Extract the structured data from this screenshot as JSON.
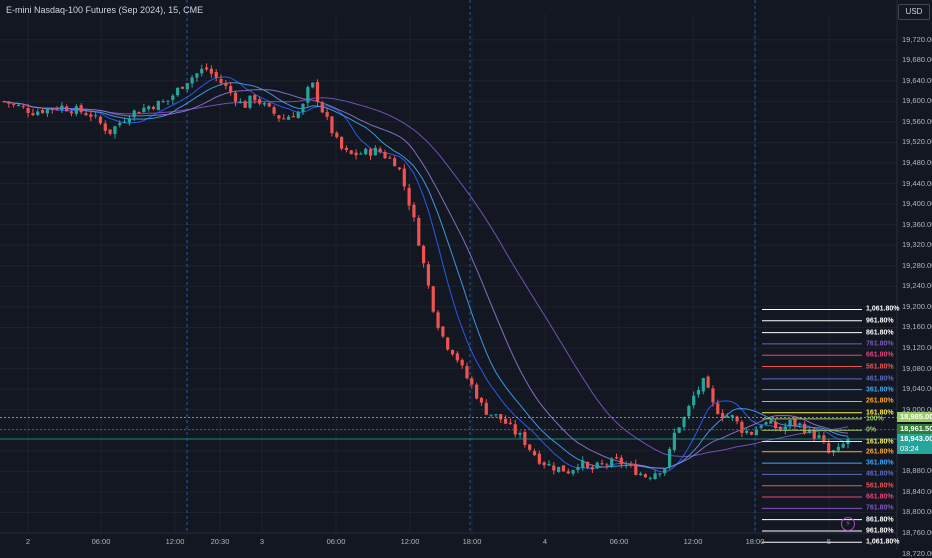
{
  "header": {
    "title": "E-mini Nasdaq-100 Futures (Sep 2024), 15, CME"
  },
  "scale": {
    "currency_label": "USD"
  },
  "colors": {
    "up": "#26a69a",
    "down": "#ef5350",
    "bg": "#131722",
    "grid": "#1e222d",
    "session": "#2a6bb5"
  },
  "chart_data": {
    "type": "candlestick",
    "instrument": "E-mini Nasdaq-100 Futures (Sep 2024)",
    "interval": "15",
    "exchange": "CME",
    "ylim": [
      18760,
      19770
    ],
    "y_ticks": [
      "19,720.00",
      "19,680.00",
      "19,640.00",
      "19,600.00",
      "19,560.00",
      "19,520.00",
      "19,480.00",
      "19,440.00",
      "19,400.00",
      "19,360.00",
      "19,320.00",
      "19,280.00",
      "19,240.00",
      "19,200.00",
      "19,160.00",
      "19,120.00",
      "19,080.00",
      "19,040.00",
      "19,000.00",
      "18,960.00",
      "18,920.00",
      "18,880.00",
      "18,840.00",
      "18,800.00",
      "18,760.00",
      "18,720.00"
    ],
    "x_ticks": [
      "2",
      "06:00",
      "12:00",
      "20:30",
      "3",
      "06:00",
      "12:00",
      "18:00",
      "4",
      "06:00",
      "12:00",
      "18:00",
      "5"
    ],
    "price_path": [
      [
        0,
        19600
      ],
      [
        6,
        19580
      ],
      [
        12,
        19590
      ],
      [
        18,
        19575
      ],
      [
        22,
        19540
      ],
      [
        26,
        19575
      ],
      [
        30,
        19590
      ],
      [
        34,
        19600
      ],
      [
        38,
        19640
      ],
      [
        42,
        19665
      ],
      [
        46,
        19630
      ],
      [
        48,
        19610
      ],
      [
        50,
        19590
      ],
      [
        52,
        19610
      ],
      [
        55,
        19585
      ],
      [
        58,
        19565
      ],
      [
        60,
        19575
      ],
      [
        62,
        19580
      ],
      [
        64,
        19640
      ],
      [
        66,
        19590
      ],
      [
        68,
        19550
      ],
      [
        70,
        19510
      ],
      [
        72,
        19495
      ],
      [
        75,
        19500
      ],
      [
        78,
        19505
      ],
      [
        80,
        19490
      ],
      [
        82,
        19480
      ],
      [
        84,
        19420
      ],
      [
        86,
        19350
      ],
      [
        88,
        19260
      ],
      [
        90,
        19180
      ],
      [
        92,
        19130
      ],
      [
        94,
        19110
      ],
      [
        96,
        19070
      ],
      [
        98,
        19040
      ],
      [
        100,
        19000
      ],
      [
        102,
        18990
      ],
      [
        104,
        18980
      ],
      [
        106,
        18960
      ],
      [
        108,
        18945
      ],
      [
        110,
        18920
      ],
      [
        112,
        18900
      ],
      [
        114,
        18890
      ],
      [
        116,
        18885
      ],
      [
        118,
        18880
      ],
      [
        120,
        18900
      ],
      [
        122,
        18880
      ],
      [
        124,
        18890
      ],
      [
        126,
        18895
      ],
      [
        128,
        18900
      ],
      [
        130,
        18890
      ],
      [
        132,
        18880
      ],
      [
        134,
        18870
      ],
      [
        136,
        18880
      ],
      [
        138,
        18890
      ],
      [
        140,
        18960
      ],
      [
        142,
        18985
      ],
      [
        144,
        19030
      ],
      [
        146,
        19055
      ],
      [
        148,
        19005
      ],
      [
        150,
        18990
      ],
      [
        152,
        18985
      ],
      [
        154,
        18960
      ],
      [
        156,
        18955
      ],
      [
        158,
        18975
      ],
      [
        160,
        18970
      ],
      [
        162,
        18960
      ],
      [
        164,
        18975
      ],
      [
        166,
        18970
      ],
      [
        168,
        18955
      ],
      [
        170,
        18945
      ],
      [
        172,
        18915
      ],
      [
        174,
        18920
      ],
      [
        176,
        18943
      ]
    ],
    "moving_averages": [
      {
        "color": "#7e57c2"
      },
      {
        "color": "#2962ff"
      },
      {
        "color": "#42a5f5"
      },
      {
        "color": "#9575cd"
      }
    ],
    "horizontal_lines": [
      {
        "price": 18985.0,
        "label": "18,985.00",
        "color": "#9ccc65",
        "style": "dotted"
      },
      {
        "price": 18961.5,
        "label": "18,961.50",
        "color": "#2e7d32",
        "style": "dotted"
      },
      {
        "price": 18943.0,
        "label": "18,943.00",
        "sublabel": "03:24",
        "color": "#26a69a",
        "style": "solid"
      }
    ],
    "fib_levels": [
      {
        "label": "1,061.80%",
        "price": 19195,
        "color": "#ffffff"
      },
      {
        "label": "961.80%",
        "price": 19173,
        "color": "#ffffff"
      },
      {
        "label": "861.80%",
        "price": 19150,
        "color": "#ffffff"
      },
      {
        "label": "761.80%",
        "price": 19128,
        "color": "#7e57c2"
      },
      {
        "label": "661.80%",
        "price": 19106,
        "color": "#ec407a"
      },
      {
        "label": "561.80%",
        "price": 19084,
        "color": "#ef5350"
      },
      {
        "label": "461.80%",
        "price": 19060,
        "color": "#5c6bc0"
      },
      {
        "label": "361.80%",
        "price": 19039,
        "color": "#42a5f5"
      },
      {
        "label": "261.80%",
        "price": 19016,
        "color": "#ffa726"
      },
      {
        "label": "161.80%",
        "price": 18994,
        "color": "#ffee58"
      },
      {
        "label": "100%",
        "price": 18982,
        "color": "#9ccc65"
      },
      {
        "label": "0%",
        "price": 18960,
        "color": "#9ccc65"
      },
      {
        "label": "161.80%",
        "price": 18938,
        "color": "#ffee58"
      },
      {
        "label": "261.80%",
        "price": 18918,
        "color": "#ffa726"
      },
      {
        "label": "361.80%",
        "price": 18896,
        "color": "#42a5f5"
      },
      {
        "label": "461.80%",
        "price": 18874,
        "color": "#5c6bc0"
      },
      {
        "label": "561.80%",
        "price": 18852,
        "color": "#ef5350"
      },
      {
        "label": "661.80%",
        "price": 18830,
        "color": "#ec407a"
      },
      {
        "label": "761.80%",
        "price": 18808,
        "color": "#7e57c2"
      },
      {
        "label": "861.80%",
        "price": 18786,
        "color": "#ffffff"
      },
      {
        "label": "961.80%",
        "price": 18764,
        "color": "#ffffff"
      },
      {
        "label": "1,061.80%",
        "price": 18742,
        "color": "#ffffff"
      }
    ]
  }
}
